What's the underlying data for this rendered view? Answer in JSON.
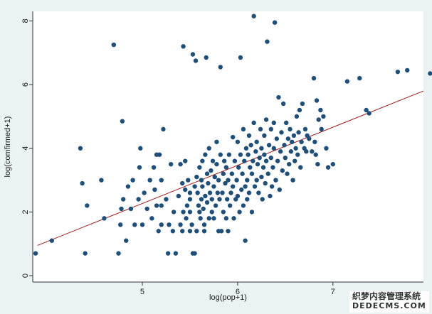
{
  "chart_data": {
    "type": "scatter",
    "title": "",
    "xlabel": "log(pop+1)",
    "ylabel": "log(comfirmed+1)",
    "xlim": [
      3.85,
      7.95
    ],
    "ylim": [
      -0.2,
      8.3
    ],
    "x_ticks": [
      5,
      6,
      7
    ],
    "y_ticks": [
      0,
      2,
      4,
      6,
      8
    ],
    "grid": false,
    "colors": {
      "background": "#eaf2f3",
      "plot": "#ffffff",
      "marker": "#1f4e79",
      "fit_line": "#9b1b1b"
    },
    "fit_line": {
      "x": [
        3.9,
        7.95
      ],
      "y": [
        0.95,
        5.8
      ]
    },
    "points": [
      [
        3.88,
        0.7
      ],
      [
        4.05,
        1.1
      ],
      [
        4.35,
        4.0
      ],
      [
        4.37,
        2.9
      ],
      [
        4.4,
        0.7
      ],
      [
        4.42,
        2.2
      ],
      [
        4.57,
        3.0
      ],
      [
        4.6,
        1.8
      ],
      [
        4.7,
        7.25
      ],
      [
        4.75,
        0.7
      ],
      [
        4.77,
        1.6
      ],
      [
        4.78,
        2.1
      ],
      [
        4.79,
        4.85
      ],
      [
        4.8,
        2.4
      ],
      [
        4.83,
        1.1
      ],
      [
        4.85,
        2.8
      ],
      [
        4.88,
        2.1
      ],
      [
        4.9,
        3.0
      ],
      [
        4.92,
        1.6
      ],
      [
        4.96,
        2.4
      ],
      [
        4.97,
        3.4
      ],
      [
        4.98,
        4.0
      ],
      [
        5.0,
        1.6
      ],
      [
        5.02,
        2.6
      ],
      [
        5.05,
        2.1
      ],
      [
        5.08,
        3.0
      ],
      [
        5.1,
        1.8
      ],
      [
        5.12,
        3.4
      ],
      [
        5.13,
        2.7
      ],
      [
        5.15,
        2.2
      ],
      [
        5.15,
        3.8
      ],
      [
        5.17,
        1.4
      ],
      [
        5.18,
        3.8
      ],
      [
        5.2,
        3.0
      ],
      [
        5.2,
        1.6
      ],
      [
        5.2,
        2.2
      ],
      [
        5.22,
        4.6
      ],
      [
        5.25,
        2.4
      ],
      [
        5.27,
        0.7
      ],
      [
        5.28,
        1.6
      ],
      [
        5.3,
        3.5
      ],
      [
        5.32,
        1.4
      ],
      [
        5.33,
        2.0
      ],
      [
        5.35,
        0.7
      ],
      [
        5.38,
        2.5
      ],
      [
        5.4,
        1.6
      ],
      [
        5.4,
        3.5
      ],
      [
        5.42,
        2.9
      ],
      [
        5.42,
        1.4
      ],
      [
        5.43,
        2.0
      ],
      [
        5.43,
        7.2
      ],
      [
        5.45,
        3.6
      ],
      [
        5.45,
        2.7
      ],
      [
        5.46,
        1.8
      ],
      [
        5.47,
        2.2
      ],
      [
        5.48,
        3.0
      ],
      [
        5.5,
        2.0
      ],
      [
        5.5,
        2.4
      ],
      [
        5.5,
        1.4
      ],
      [
        5.5,
        2.6
      ],
      [
        5.52,
        1.6
      ],
      [
        5.53,
        0.7
      ],
      [
        5.53,
        6.95
      ],
      [
        5.55,
        2.8
      ],
      [
        5.55,
        0.7
      ],
      [
        5.56,
        6.75
      ],
      [
        5.57,
        3.1
      ],
      [
        5.57,
        1.4
      ],
      [
        5.58,
        2.6
      ],
      [
        5.59,
        2.2
      ],
      [
        5.6,
        3.4
      ],
      [
        5.6,
        2.0
      ],
      [
        5.61,
        1.8
      ],
      [
        5.62,
        3.0
      ],
      [
        5.62,
        2.4
      ],
      [
        5.63,
        3.6
      ],
      [
        5.63,
        2.8
      ],
      [
        5.64,
        2.1
      ],
      [
        5.65,
        1.6
      ],
      [
        5.65,
        1.4
      ],
      [
        5.66,
        3.8
      ],
      [
        5.66,
        2.5
      ],
      [
        5.67,
        6.85
      ],
      [
        5.68,
        3.2
      ],
      [
        5.68,
        2.3
      ],
      [
        5.69,
        2.9
      ],
      [
        5.7,
        1.8
      ],
      [
        5.7,
        4.0
      ],
      [
        5.71,
        2.6
      ],
      [
        5.72,
        3.3
      ],
      [
        5.73,
        2.0
      ],
      [
        5.73,
        2.4
      ],
      [
        5.74,
        3.6
      ],
      [
        5.75,
        1.8
      ],
      [
        5.75,
        2.8
      ],
      [
        5.76,
        3.1
      ],
      [
        5.77,
        2.2
      ],
      [
        5.78,
        3.5
      ],
      [
        5.78,
        4.2
      ],
      [
        5.79,
        2.6
      ],
      [
        5.8,
        1.4
      ],
      [
        5.8,
        3.0
      ],
      [
        5.81,
        2.4
      ],
      [
        5.82,
        3.8
      ],
      [
        5.82,
        6.55
      ],
      [
        5.83,
        1.4
      ],
      [
        5.84,
        2.6
      ],
      [
        5.85,
        3.2
      ],
      [
        5.85,
        2.0
      ],
      [
        5.86,
        3.6
      ],
      [
        5.87,
        2.9
      ],
      [
        5.88,
        1.8
      ],
      [
        5.88,
        3.4
      ],
      [
        5.89,
        2.4
      ],
      [
        5.9,
        3.0
      ],
      [
        5.9,
        1.4
      ],
      [
        5.91,
        3.8
      ],
      [
        5.92,
        2.2
      ],
      [
        5.93,
        2.6
      ],
      [
        5.94,
        3.2
      ],
      [
        5.95,
        4.35
      ],
      [
        5.95,
        2.8
      ],
      [
        5.96,
        1.8
      ],
      [
        5.97,
        3.6
      ],
      [
        5.98,
        2.4
      ],
      [
        5.99,
        3.0
      ],
      [
        6.0,
        4.2
      ],
      [
        6.0,
        2.5
      ],
      [
        6.01,
        3.4
      ],
      [
        6.02,
        2.0
      ],
      [
        6.03,
        3.8
      ],
      [
        6.03,
        6.85
      ],
      [
        6.04,
        2.7
      ],
      [
        6.05,
        3.2
      ],
      [
        6.06,
        4.6
      ],
      [
        6.06,
        2.2
      ],
      [
        6.07,
        3.6
      ],
      [
        6.08,
        2.8
      ],
      [
        6.08,
        1.1
      ],
      [
        6.09,
        4.0
      ],
      [
        6.1,
        3.0
      ],
      [
        6.1,
        2.4
      ],
      [
        6.11,
        3.8
      ],
      [
        6.12,
        4.4
      ],
      [
        6.12,
        2.6
      ],
      [
        6.13,
        3.4
      ],
      [
        6.14,
        4.1
      ],
      [
        6.15,
        3.2
      ],
      [
        6.15,
        2.0
      ],
      [
        6.16,
        3.6
      ],
      [
        6.17,
        4.8
      ],
      [
        6.17,
        8.15
      ],
      [
        6.18,
        2.8
      ],
      [
        6.19,
        3.9
      ],
      [
        6.2,
        3.0
      ],
      [
        6.2,
        4.2
      ],
      [
        6.21,
        3.5
      ],
      [
        6.22,
        2.6
      ],
      [
        6.23,
        3.7
      ],
      [
        6.24,
        4.6
      ],
      [
        6.25,
        3.1
      ],
      [
        6.25,
        4.0
      ],
      [
        6.26,
        2.4
      ],
      [
        6.27,
        3.4
      ],
      [
        6.28,
        3.8
      ],
      [
        6.28,
        4.4
      ],
      [
        6.29,
        2.9
      ],
      [
        6.3,
        3.6
      ],
      [
        6.3,
        4.9
      ],
      [
        6.31,
        7.35
      ],
      [
        6.32,
        3.2
      ],
      [
        6.33,
        4.1
      ],
      [
        6.34,
        2.5
      ],
      [
        6.35,
        3.7
      ],
      [
        6.35,
        4.6
      ],
      [
        6.36,
        2.8
      ],
      [
        6.37,
        3.4
      ],
      [
        6.38,
        4.0
      ],
      [
        6.38,
        4.8
      ],
      [
        6.39,
        7.95
      ],
      [
        6.4,
        3.0
      ],
      [
        6.41,
        4.3
      ],
      [
        6.42,
        3.6
      ],
      [
        6.43,
        5.6
      ],
      [
        6.44,
        2.7
      ],
      [
        6.45,
        3.9
      ],
      [
        6.46,
        4.5
      ],
      [
        6.47,
        3.3
      ],
      [
        6.48,
        5.4
      ],
      [
        6.49,
        4.1
      ],
      [
        6.5,
        3.7
      ],
      [
        6.51,
        4.8
      ],
      [
        6.52,
        3.2
      ],
      [
        6.53,
        4.3
      ],
      [
        6.54,
        3.5
      ],
      [
        6.55,
        4.6
      ],
      [
        6.56,
        3.9
      ],
      [
        6.57,
        4.2
      ],
      [
        6.58,
        3.0
      ],
      [
        6.59,
        4.4
      ],
      [
        6.6,
        3.6
      ],
      [
        6.61,
        4.0
      ],
      [
        6.62,
        5.0
      ],
      [
        6.63,
        3.8
      ],
      [
        6.64,
        4.5
      ],
      [
        6.65,
        5.2
      ],
      [
        6.66,
        3.4
      ],
      [
        6.67,
        4.2
      ],
      [
        6.68,
        5.4
      ],
      [
        6.7,
        4.0
      ],
      [
        6.71,
        4.6
      ],
      [
        6.72,
        3.9
      ],
      [
        6.73,
        4.4
      ],
      [
        6.75,
        4.3
      ],
      [
        6.78,
        3.9
      ],
      [
        6.8,
        6.2
      ],
      [
        6.81,
        4.2
      ],
      [
        6.82,
        3.8
      ],
      [
        6.83,
        5.5
      ],
      [
        6.84,
        3.5
      ],
      [
        6.85,
        4.9
      ],
      [
        6.87,
        5.2
      ],
      [
        6.88,
        4.6
      ],
      [
        6.9,
        5.0
      ],
      [
        6.93,
        4.0
      ],
      [
        6.95,
        3.4
      ],
      [
        7.0,
        3.5
      ],
      [
        7.15,
        6.1
      ],
      [
        7.28,
        6.2
      ],
      [
        7.35,
        5.2
      ],
      [
        7.38,
        5.1
      ],
      [
        7.68,
        6.4
      ],
      [
        7.78,
        6.45
      ],
      [
        8.02,
        6.35
      ]
    ]
  }
}
